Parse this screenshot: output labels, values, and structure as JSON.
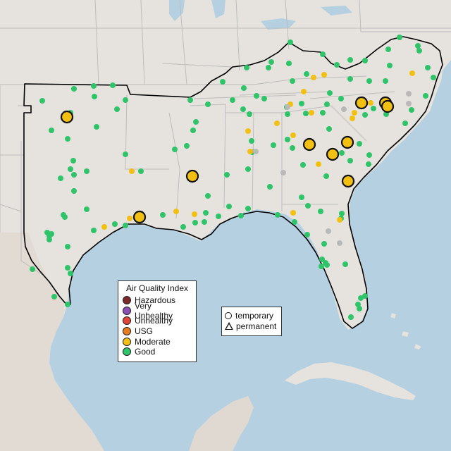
{
  "map": {
    "colors": {
      "water": "#b5d0e0",
      "land": "#e6e3de",
      "mexico": "#e0d9d2",
      "state_lines": "#bdbdbd",
      "region_outline": "#000000"
    }
  },
  "legend": {
    "title": "Air Quality Index",
    "items": [
      {
        "label": "Hazardous",
        "color": "#7e2a2a"
      },
      {
        "label": "Very Unhealthy",
        "color": "#8c4fb5"
      },
      {
        "label": "Unhealthy",
        "color": "#e3443a"
      },
      {
        "label": "USG",
        "color": "#e87b1e"
      },
      {
        "label": "Moderate",
        "color": "#f2c012"
      },
      {
        "label": "Good",
        "color": "#2fc46a"
      }
    ]
  },
  "monitor_types": {
    "temporary": "temporary",
    "permanent": "permanent"
  },
  "station_colors": {
    "good": "#2fc46a",
    "moderate": "#f2c012",
    "nodata": "#b9b9b9"
  }
}
